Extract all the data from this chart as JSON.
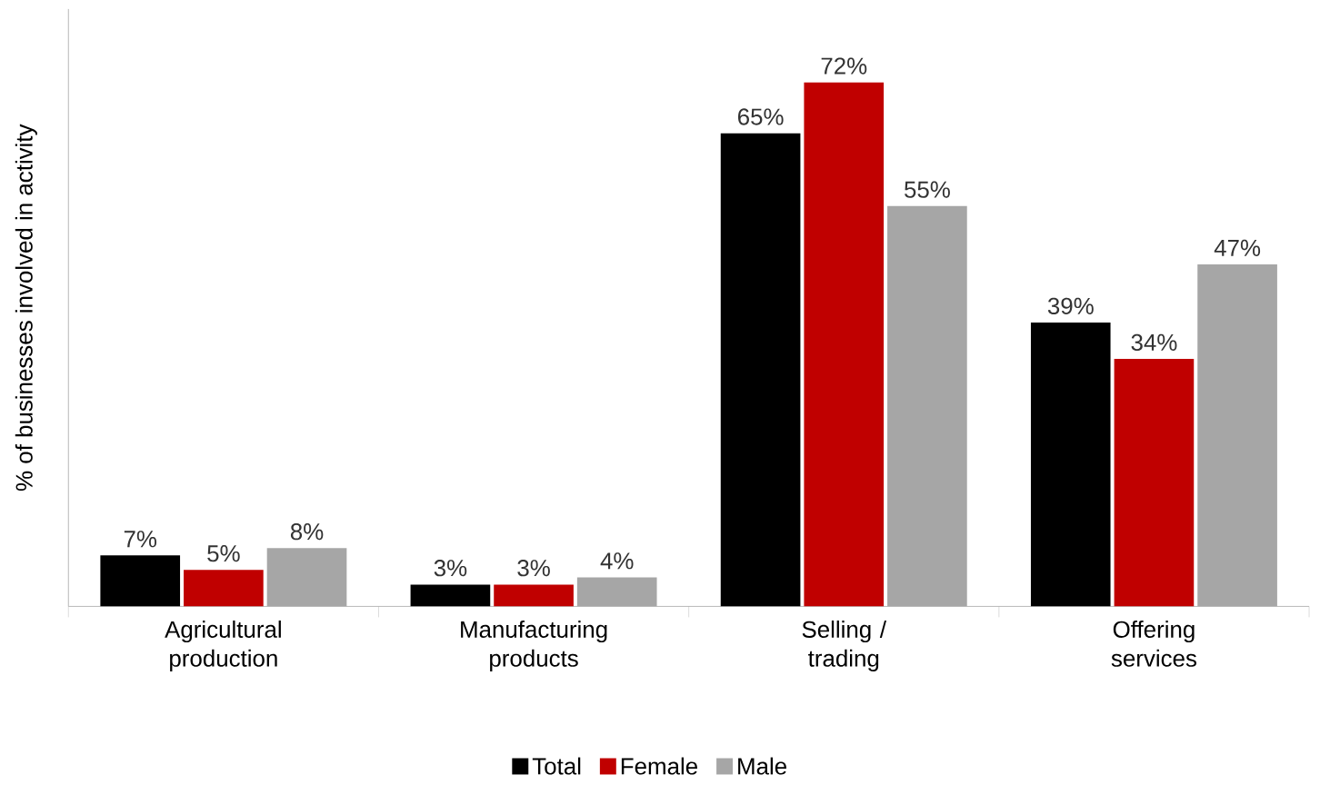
{
  "chart_data": {
    "type": "bar",
    "ylabel": "% of businesses involved in activity",
    "categories": [
      "Agricultural production",
      "Manufacturing products",
      "Selling / trading",
      "Offering services"
    ],
    "series": [
      {
        "name": "Total",
        "color": "#000000",
        "values": [
          7,
          3,
          65,
          39
        ],
        "value_labels": [
          "7%",
          "3%",
          "65%",
          "39%"
        ]
      },
      {
        "name": "Female",
        "color": "#c00000",
        "values": [
          5,
          3,
          72,
          34
        ],
        "value_labels": [
          "5%",
          "3%",
          "72%",
          "34%"
        ]
      },
      {
        "name": "Male",
        "color": "#a6a6a6",
        "values": [
          8,
          4,
          55,
          47
        ],
        "value_labels": [
          "8%",
          "4%",
          "55%",
          "47%"
        ]
      }
    ],
    "legend": "bottom"
  }
}
